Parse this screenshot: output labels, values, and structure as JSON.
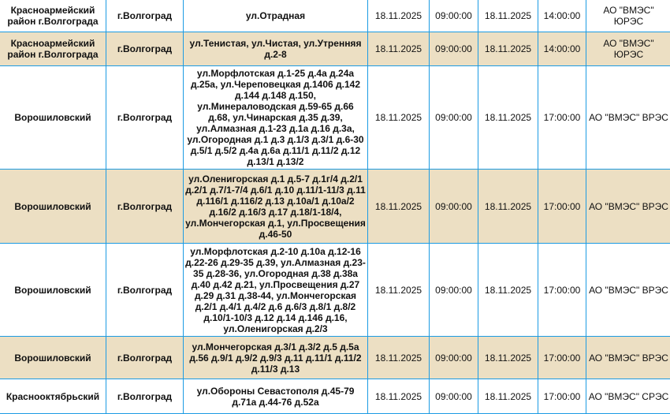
{
  "rows": [
    {
      "district": "Красноармейский район г.Волгограда",
      "city": "г.Волгоград",
      "address": "ул.Отрадная",
      "start_date": "18.11.2025",
      "start_time": "09:00:00",
      "end_date": "18.11.2025",
      "end_time": "14:00:00",
      "org": "АО \"ВМЭС\" ЮРЭС",
      "highlight": false
    },
    {
      "district": "Красноармейский район г.Волгограда",
      "city": "г.Волгоград",
      "address": "ул.Тенистая, ул.Чистая, ул.Утренняя д.2-8",
      "start_date": "18.11.2025",
      "start_time": "09:00:00",
      "end_date": "18.11.2025",
      "end_time": "14:00:00",
      "org": "АО \"ВМЭС\" ЮРЭС",
      "highlight": true
    },
    {
      "district": "Ворошиловский",
      "city": "г.Волгоград",
      "address": "ул.Морфлотская д.1-25 д.4а д.24а д.25а, ул.Череповецкая д.1406 д.142 д.144 д.148 д.150, ул.Минераловодская д.59-65 д.66 д.68, ул.Чинарская д.35 д.39, ул.Алмазная д.1-23 д.1а д.16 д.3а, ул.Огородная д.1 д.3 д.1/3 д.3/1 д.6-30 д.5/1 д.5/2 д.4а д.6а д.11/1 д.11/2 д.12 д.13/1 д.13/2",
      "start_date": "18.11.2025",
      "start_time": "09:00:00",
      "end_date": "18.11.2025",
      "end_time": "17:00:00",
      "org": "АО \"ВМЭС\" ВРЭС",
      "highlight": false
    },
    {
      "district": "Ворошиловский",
      "city": "г.Волгоград",
      "address": "ул.Оленигорская д.1 д.5-7 д.1г/4 д.2/1 д.2/1 д.7/1-7/4 д.6/1 д.10 д.11/1-11/3 д.11 д.116/1 д.116/2 д.13 д.10а/1 д.10а/2 д.16/2 д.16/3 д.17 д.18/1-18/4, ул.Мончегорская д.1, ул.Просвещения д.46-50",
      "start_date": "18.11.2025",
      "start_time": "09:00:00",
      "end_date": "18.11.2025",
      "end_time": "17:00:00",
      "org": "АО \"ВМЭС\" ВРЭС",
      "highlight": true
    },
    {
      "district": "Ворошиловский",
      "city": "г.Волгоград",
      "address": "ул.Морфлотская д.2-10 д.10а д.12-16 д.22-26 д.29-35 д.39, ул.Алмазная д.23-35 д.28-36, ул.Огородная д.38 д.38а д.40 д.42 д.21, ул.Просвещения д.27 д.29 д.31 д.38-44, ул.Мончегорская д.2/1 д.4/1 д.4/2 д.6 д.6/3 д.8/1 д.8/2 д.10/1-10/3 д.12 д.14 д.146 д.16, ул.Оленигорская д.2/3",
      "start_date": "18.11.2025",
      "start_time": "09:00:00",
      "end_date": "18.11.2025",
      "end_time": "17:00:00",
      "org": "АО \"ВМЭС\" ВРЭС",
      "highlight": false
    },
    {
      "district": "Ворошиловский",
      "city": "г.Волгоград",
      "address": "ул.Мончегорская д.3/1 д.3/2 д.5 д.5а д.56 д.9/1 д.9/2 д.9/3 д.11 д.11/1 д.11/2 д.11/3 д.13",
      "start_date": "18.11.2025",
      "start_time": "09:00:00",
      "end_date": "18.11.2025",
      "end_time": "17:00:00",
      "org": "АО \"ВМЭС\" ВРЭС",
      "highlight": true
    },
    {
      "district": "Краснооктябрьский",
      "city": "г.Волгоград",
      "address": "ул.Обороны Севастополя д.45-79 д.71а д.44-76 д.52а",
      "start_date": "18.11.2025",
      "start_time": "09:00:00",
      "end_date": "18.11.2025",
      "end_time": "17:00:00",
      "org": "АО \"ВМЭС\" СРЭС",
      "highlight": false
    }
  ],
  "colors": {
    "border": "#1c9be3",
    "highlight_row": "#ecdfc3"
  }
}
